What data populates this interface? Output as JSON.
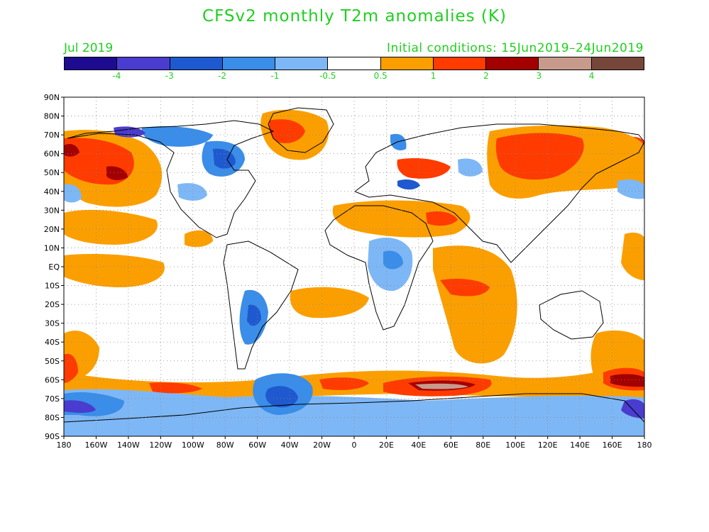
{
  "header": {
    "title": "CFSv2 monthly T2m anomalies (K)",
    "forecast_month": "Jul 2019",
    "initial_conditions": "Initial conditions: 15Jun2019–24Jun2019"
  },
  "colorbar": {
    "colors": [
      "#1d0b91",
      "#4a3ccf",
      "#1f59cf",
      "#3a8de8",
      "#7eb7f5",
      "#ffffff",
      "#fb9f00",
      "#ff3b00",
      "#a30000",
      "#c89a8c",
      "#77463b"
    ],
    "labels": [
      "-4",
      "-3",
      "-2",
      "-1",
      "-0.5",
      "0.5",
      "1",
      "2",
      "3",
      "4"
    ]
  },
  "axes": {
    "lat_labels": [
      "90N",
      "80N",
      "70N",
      "60N",
      "50N",
      "40N",
      "30N",
      "20N",
      "10N",
      "EQ",
      "10S",
      "20S",
      "30S",
      "40S",
      "50S",
      "60S",
      "70S",
      "80S",
      "90S"
    ],
    "lon_labels": [
      "180",
      "160W",
      "140W",
      "120W",
      "100W",
      "80W",
      "60W",
      "40W",
      "20W",
      "0",
      "20E",
      "40E",
      "60E",
      "80E",
      "100E",
      "120E",
      "140E",
      "160E",
      "180"
    ]
  }
}
